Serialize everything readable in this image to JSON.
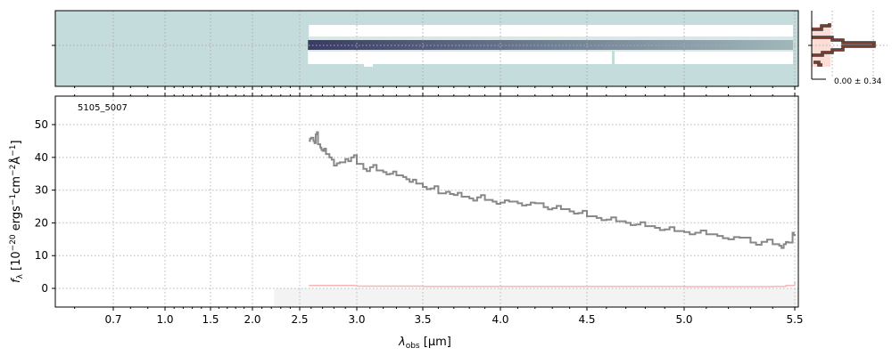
{
  "chart_data": [
    {
      "type": "heatmap",
      "panel": "2d-spectrum",
      "description_label": "",
      "background_color": "#c5dcdc",
      "trace_color": "#3a3a66",
      "x_start": 2.58,
      "x_end": 5.5
    },
    {
      "type": "line",
      "panel": "1d-spectrum",
      "annotation": "5105_5007",
      "xlabel_main": "λ",
      "xlabel_sub": "obs",
      "xlabel_unit": " [μm]",
      "ylabel": "f_λ [10^-20 erg s^-1 cm^-2 Å^-1]",
      "ylabel_parts": {
        "f": "f",
        "sub": "λ",
        "a": " [10",
        "e1": "−20",
        "b": " ergs",
        "e2": "−1",
        "c": "cm",
        "e3": "−2",
        "d": "Å",
        "e4": "−1",
        "e": "]"
      },
      "ylim": [
        -5.7,
        58.7
      ],
      "xlim": [
        0.55,
        5.52
      ],
      "xticks": [
        {
          "v": 0.7,
          "label": "0.7"
        },
        {
          "v": 1.0,
          "label": "1.0"
        },
        {
          "v": 1.5,
          "label": "1.5"
        },
        {
          "v": 2.0,
          "label": "2.0"
        },
        {
          "v": 2.5,
          "label": "2.5"
        },
        {
          "v": 3.0,
          "label": "3.0"
        },
        {
          "v": 3.5,
          "label": "3.5"
        },
        {
          "v": 4.0,
          "label": "4.0"
        },
        {
          "v": 4.5,
          "label": "4.5"
        },
        {
          "v": 5.0,
          "label": "5.0"
        },
        {
          "v": 5.5,
          "label": "5.5"
        }
      ],
      "yticks": [
        {
          "v": 0,
          "label": "0"
        },
        {
          "v": 10,
          "label": "10"
        },
        {
          "v": 20,
          "label": "20"
        },
        {
          "v": 30,
          "label": "30"
        },
        {
          "v": 40,
          "label": "40"
        },
        {
          "v": 50,
          "label": "50"
        }
      ],
      "grid": true,
      "shaded_region": [
        2.4,
        5.52
      ],
      "series": [
        {
          "name": "flux",
          "color": "#888888",
          "x": [
            2.58,
            2.6,
            2.62,
            2.64,
            2.66,
            2.68,
            2.7,
            2.73,
            2.76,
            2.8,
            2.85,
            2.9,
            2.95,
            3.0,
            3.05,
            3.1,
            3.15,
            3.2,
            3.25,
            3.3,
            3.35,
            3.4,
            3.45,
            3.5,
            3.55,
            3.6,
            3.65,
            3.7,
            3.75,
            3.8,
            3.85,
            3.9,
            3.95,
            4.0,
            4.05,
            4.1,
            4.15,
            4.2,
            4.25,
            4.3,
            4.35,
            4.4,
            4.45,
            4.5,
            4.55,
            4.6,
            4.65,
            4.7,
            4.75,
            4.8,
            4.85,
            4.9,
            4.95,
            5.0,
            5.05,
            5.1,
            5.15,
            5.2,
            5.25,
            5.3,
            5.35,
            5.4,
            5.43,
            5.45,
            5.47,
            5.49,
            5.5
          ],
          "y": [
            45,
            46,
            45,
            47,
            44,
            43,
            42,
            41,
            40,
            37.5,
            38.5,
            39.5,
            40,
            38,
            36.5,
            37,
            36,
            35.5,
            35,
            34.5,
            34,
            32.5,
            32,
            31,
            30.5,
            29,
            29.5,
            28.5,
            28,
            27.5,
            27.8,
            27,
            26.5,
            26.2,
            26.5,
            26,
            25.5,
            26,
            24.8,
            24.5,
            24.2,
            23.5,
            23,
            22,
            21.5,
            21,
            20.5,
            20,
            19.5,
            19,
            18.5,
            18,
            17.5,
            17.2,
            17,
            16.5,
            16,
            15,
            15.5,
            14,
            14.2,
            13.5,
            13,
            13.5,
            14,
            17,
            16
          ]
        },
        {
          "name": "error",
          "color": "#f4b6b6",
          "x": [
            2.58,
            3.0,
            3.5,
            4.0,
            4.5,
            5.0,
            5.4,
            5.46,
            5.5
          ],
          "y": [
            0.9,
            0.7,
            0.6,
            0.6,
            0.6,
            0.5,
            0.6,
            0.9,
            2.0
          ]
        }
      ]
    },
    {
      "type": "bar",
      "panel": "profile",
      "label": "0.00 ± 0.34",
      "profile_color": "#7b3b2e",
      "fill_color": "#fcd5cc"
    }
  ]
}
